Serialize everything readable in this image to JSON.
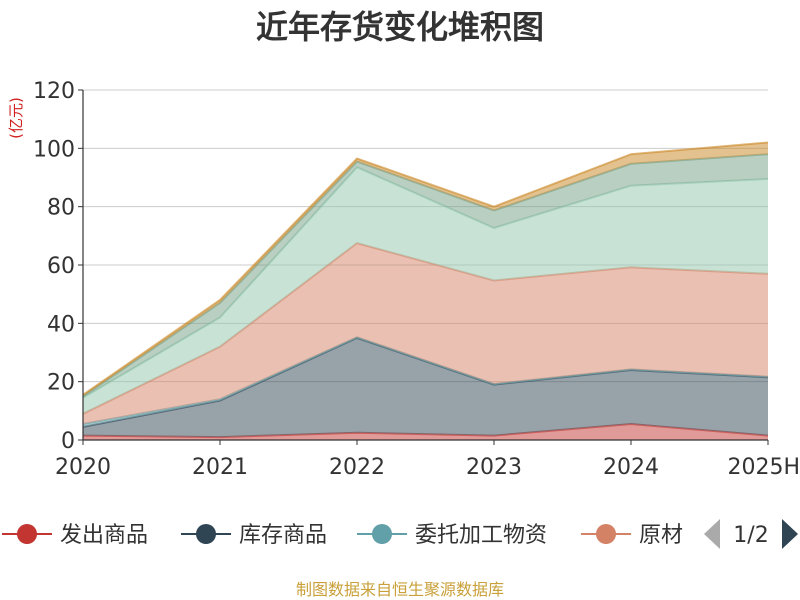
{
  "chart_data": {
    "type": "area",
    "stacked": true,
    "title": "近年存货变化堆积图",
    "y_unit": "(亿元)",
    "categories": [
      "2020",
      "2021",
      "2022",
      "2023",
      "2024",
      "2025H"
    ],
    "ylim": [
      0,
      120
    ],
    "y_ticks": [
      "0",
      "20",
      "40",
      "60",
      "80",
      "100",
      "120"
    ],
    "grid": true,
    "series": [
      {
        "name": "发出商品",
        "color": "#c23531",
        "values": [
          1.5,
          1,
          2.5,
          1.5,
          5.5,
          1.5
        ]
      },
      {
        "name": "库存商品",
        "color": "#2f4554",
        "values": [
          3,
          12.5,
          32.5,
          17.5,
          18.5,
          20
        ]
      },
      {
        "name": "委托加工物资",
        "color": "#61a0a8",
        "values": [
          1,
          0.5,
          0.2,
          0.2,
          0.2,
          0.2
        ]
      },
      {
        "name": "原材料",
        "color": "#d48265",
        "values": [
          3.5,
          18,
          32.3,
          35.5,
          35,
          35.3
        ]
      },
      {
        "name": "",
        "color": "#91c7ae",
        "values": [
          5.5,
          10,
          26,
          18,
          28,
          32.5
        ]
      },
      {
        "name": "",
        "color": "#749f83",
        "values": [
          0.5,
          5,
          2,
          6,
          7.5,
          8.5
        ]
      },
      {
        "name": "",
        "color": "#ca8622",
        "values": [
          0.5,
          1,
          1,
          1.3,
          3.3,
          4
        ]
      }
    ]
  },
  "legend": {
    "items": [
      "发出商品",
      "库存商品",
      "委托加工物资",
      "原材"
    ],
    "page": "1/2"
  },
  "source": "制图数据来自恒生聚源数据库"
}
